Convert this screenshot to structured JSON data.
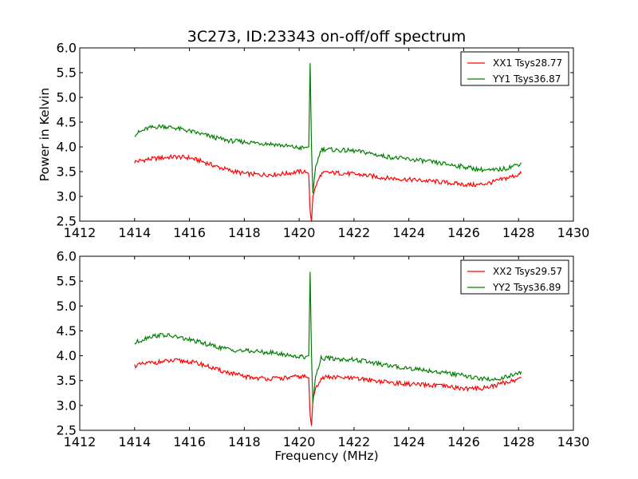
{
  "chart_data": [
    {
      "type": "line",
      "title": "3C273, ID:23343 on-off/off spectrum",
      "xlabel": "",
      "ylabel": "Power in Kelvin",
      "xlim": [
        1412,
        1430
      ],
      "ylim": [
        2.5,
        6.0
      ],
      "xticks": [
        1412,
        1414,
        1416,
        1418,
        1420,
        1422,
        1424,
        1426,
        1428,
        1430
      ],
      "yticks": [
        2.5,
        3.0,
        3.5,
        4.0,
        4.5,
        5.0,
        5.5,
        6.0
      ],
      "legend": "top-right",
      "grid": false,
      "series": [
        {
          "name": "XX1 Tsys28.77",
          "color": "#ff0000",
          "x": [
            1414.0,
            1414.5,
            1415.0,
            1415.5,
            1416.0,
            1416.5,
            1417.0,
            1417.5,
            1418.0,
            1418.5,
            1419.0,
            1419.5,
            1420.0,
            1420.2,
            1420.35,
            1420.4,
            1420.45,
            1420.5,
            1420.6,
            1420.8,
            1421.0,
            1421.5,
            1422.0,
            1422.5,
            1423.0,
            1423.5,
            1424.0,
            1424.5,
            1425.0,
            1425.5,
            1426.0,
            1426.5,
            1427.0,
            1427.5,
            1428.0,
            1428.1
          ],
          "y": [
            3.7,
            3.75,
            3.78,
            3.8,
            3.78,
            3.7,
            3.6,
            3.52,
            3.46,
            3.44,
            3.44,
            3.46,
            3.5,
            3.5,
            3.45,
            2.7,
            2.5,
            3.0,
            3.2,
            3.45,
            3.48,
            3.47,
            3.45,
            3.42,
            3.38,
            3.36,
            3.34,
            3.32,
            3.3,
            3.27,
            3.24,
            3.23,
            3.28,
            3.36,
            3.44,
            3.46
          ]
        },
        {
          "name": "YY1 Tsys36.87",
          "color": "#008000",
          "x": [
            1414.0,
            1414.5,
            1415.0,
            1415.5,
            1416.0,
            1416.5,
            1417.0,
            1417.5,
            1418.0,
            1418.5,
            1419.0,
            1419.5,
            1420.0,
            1420.2,
            1420.35,
            1420.4,
            1420.45,
            1420.5,
            1420.6,
            1420.8,
            1421.0,
            1421.5,
            1422.0,
            1422.5,
            1423.0,
            1423.5,
            1424.0,
            1424.5,
            1425.0,
            1425.5,
            1426.0,
            1426.5,
            1427.0,
            1427.5,
            1428.0,
            1428.1
          ],
          "y": [
            4.25,
            4.38,
            4.42,
            4.38,
            4.32,
            4.25,
            4.18,
            4.12,
            4.1,
            4.08,
            4.06,
            4.02,
            3.98,
            3.98,
            4.0,
            5.7,
            4.0,
            3.05,
            3.6,
            3.95,
            3.95,
            3.93,
            3.92,
            3.88,
            3.82,
            3.78,
            3.75,
            3.72,
            3.68,
            3.64,
            3.6,
            3.55,
            3.52,
            3.56,
            3.65,
            3.68
          ]
        }
      ]
    },
    {
      "type": "line",
      "title": "",
      "xlabel": "Frequency (MHz)",
      "ylabel": "",
      "xlim": [
        1412,
        1430
      ],
      "ylim": [
        2.5,
        6.0
      ],
      "xticks": [
        1412,
        1414,
        1416,
        1418,
        1420,
        1422,
        1424,
        1426,
        1428,
        1430
      ],
      "yticks": [
        2.5,
        3.0,
        3.5,
        4.0,
        4.5,
        5.0,
        5.5,
        6.0
      ],
      "legend": "top-right",
      "grid": false,
      "series": [
        {
          "name": "XX2 Tsys29.57",
          "color": "#ff0000",
          "x": [
            1414.0,
            1414.5,
            1415.0,
            1415.5,
            1416.0,
            1416.5,
            1417.0,
            1417.5,
            1418.0,
            1418.5,
            1419.0,
            1419.5,
            1420.0,
            1420.2,
            1420.35,
            1420.4,
            1420.45,
            1420.5,
            1420.6,
            1420.8,
            1421.0,
            1421.5,
            1422.0,
            1422.5,
            1423.0,
            1423.5,
            1424.0,
            1424.5,
            1425.0,
            1425.5,
            1426.0,
            1426.5,
            1427.0,
            1427.5,
            1428.0,
            1428.1
          ],
          "y": [
            3.8,
            3.85,
            3.88,
            3.9,
            3.88,
            3.82,
            3.72,
            3.65,
            3.58,
            3.55,
            3.54,
            3.55,
            3.58,
            3.58,
            3.55,
            2.8,
            2.6,
            3.1,
            3.35,
            3.55,
            3.57,
            3.56,
            3.54,
            3.52,
            3.48,
            3.45,
            3.43,
            3.41,
            3.4,
            3.37,
            3.34,
            3.34,
            3.38,
            3.46,
            3.53,
            3.55
          ]
        },
        {
          "name": "YY2 Tsys36.89",
          "color": "#008000",
          "x": [
            1414.0,
            1414.5,
            1415.0,
            1415.5,
            1416.0,
            1416.5,
            1417.0,
            1417.5,
            1418.0,
            1418.5,
            1419.0,
            1419.5,
            1420.0,
            1420.2,
            1420.35,
            1420.4,
            1420.45,
            1420.5,
            1420.6,
            1420.8,
            1421.0,
            1421.5,
            1422.0,
            1422.5,
            1423.0,
            1423.5,
            1424.0,
            1424.5,
            1425.0,
            1425.5,
            1426.0,
            1426.5,
            1427.0,
            1427.5,
            1428.0,
            1428.1
          ],
          "y": [
            4.25,
            4.38,
            4.42,
            4.38,
            4.32,
            4.25,
            4.18,
            4.12,
            4.1,
            4.08,
            4.06,
            4.02,
            3.98,
            3.98,
            4.0,
            5.7,
            4.0,
            3.05,
            3.6,
            3.95,
            3.95,
            3.93,
            3.92,
            3.88,
            3.82,
            3.78,
            3.75,
            3.72,
            3.68,
            3.64,
            3.6,
            3.55,
            3.52,
            3.56,
            3.65,
            3.68
          ]
        }
      ]
    }
  ]
}
